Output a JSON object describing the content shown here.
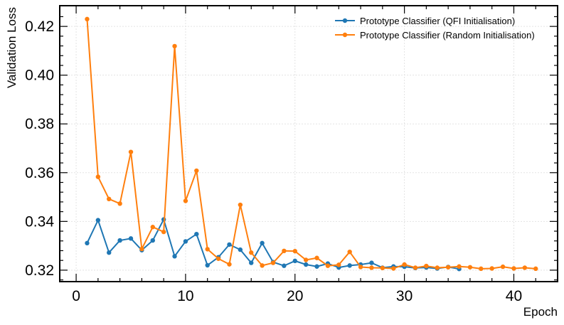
{
  "chart_data": {
    "type": "line",
    "title": "",
    "xlabel": "Epoch",
    "ylabel": "Validation Loss",
    "xlim": [
      -1.5,
      44
    ],
    "ylim": [
      0.3153,
      0.4285
    ],
    "x_ticks": [
      0,
      10,
      20,
      30,
      40
    ],
    "x_tick_labels": [
      "0",
      "10",
      "20",
      "30",
      "40"
    ],
    "y_ticks": [
      0.32,
      0.34,
      0.36,
      0.38,
      0.4,
      0.42
    ],
    "y_tick_labels": [
      "0.32",
      "0.34",
      "0.36",
      "0.38",
      "0.40",
      "0.42"
    ],
    "grid": true,
    "legend_position": "top-right",
    "series": [
      {
        "name": "Prototype Classifier (QFI Initialisation)",
        "color": "#1f77b4",
        "x": [
          1,
          2,
          3,
          4,
          5,
          6,
          7,
          8,
          9,
          10,
          11,
          12,
          13,
          14,
          15,
          16,
          17,
          18,
          19,
          20,
          21,
          22,
          23,
          24,
          25,
          26,
          27,
          28,
          29,
          30,
          31,
          32,
          33,
          34,
          35
        ],
        "values": [
          0.3311,
          0.3405,
          0.3272,
          0.3322,
          0.333,
          0.3282,
          0.3322,
          0.3408,
          0.3257,
          0.3318,
          0.3348,
          0.322,
          0.3253,
          0.3305,
          0.3284,
          0.323,
          0.3311,
          0.3233,
          0.3218,
          0.3238,
          0.3223,
          0.3215,
          0.3227,
          0.3211,
          0.3219,
          0.3223,
          0.323,
          0.321,
          0.3215,
          0.3214,
          0.3209,
          0.3211,
          0.3207,
          0.3213,
          0.3205
        ]
      },
      {
        "name": "Prototype Classifier (Random Initialisation)",
        "color": "#ff7f0e",
        "x": [
          1,
          2,
          3,
          4,
          5,
          6,
          7,
          8,
          9,
          10,
          11,
          12,
          13,
          14,
          15,
          16,
          17,
          18,
          19,
          20,
          21,
          22,
          23,
          24,
          25,
          26,
          27,
          28,
          29,
          30,
          31,
          32,
          33,
          34,
          35,
          36,
          37,
          38,
          39,
          40,
          41,
          42
        ],
        "values": [
          0.423,
          0.3583,
          0.3492,
          0.3473,
          0.3685,
          0.3287,
          0.3377,
          0.3357,
          0.4119,
          0.3484,
          0.3608,
          0.3286,
          0.3247,
          0.3224,
          0.3468,
          0.3272,
          0.3219,
          0.323,
          0.3279,
          0.3278,
          0.3242,
          0.325,
          0.3218,
          0.3222,
          0.3275,
          0.3213,
          0.321,
          0.3209,
          0.3207,
          0.3223,
          0.321,
          0.3217,
          0.321,
          0.3212,
          0.3215,
          0.3212,
          0.3206,
          0.3207,
          0.3214,
          0.3207,
          0.321,
          0.3206
        ]
      }
    ]
  }
}
